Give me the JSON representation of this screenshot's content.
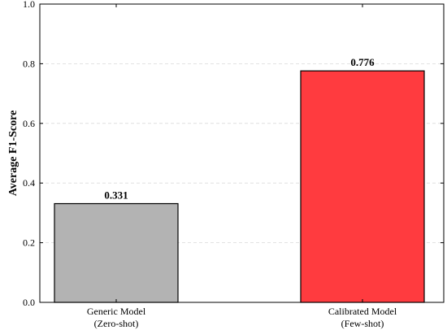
{
  "chart_data": {
    "type": "bar",
    "title": "",
    "xlabel": "",
    "ylabel": "Average F1-Score",
    "ylim": [
      0,
      1.0
    ],
    "yticks": [
      "0.0",
      "0.2",
      "0.4",
      "0.6",
      "0.8",
      "1.0"
    ],
    "grid": "horizontal-dashed",
    "categories": [
      [
        "Generic Model",
        "(Zero-shot)"
      ],
      [
        "Calibrated Model",
        "(Few-shot)"
      ]
    ],
    "values": [
      0.331,
      0.776
    ],
    "data_labels": [
      "0.331",
      "0.776"
    ],
    "colors": [
      "#b3b3b3",
      "#ff3b3f"
    ],
    "edge_color": "#000000"
  }
}
